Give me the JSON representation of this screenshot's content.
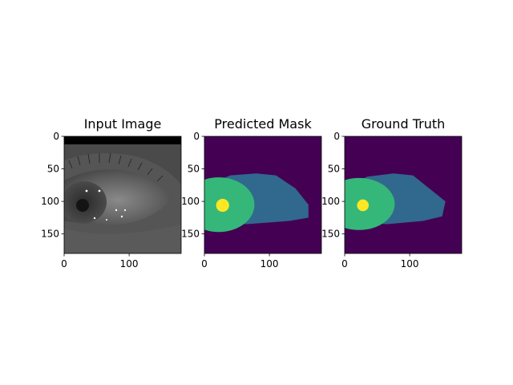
{
  "figure": {
    "background": "#ffffff"
  },
  "colors": {
    "background_class": "#440154",
    "iris_class": "#31688e",
    "pupil_region_class": "#35b779",
    "pupil_class": "#fde725",
    "eye_image_dark": "#1e1e1e",
    "eye_image_light": "#7a7a7a",
    "padding_band": "#000000"
  },
  "chart_data": [
    {
      "type": "image",
      "title": "Input Image",
      "content": "grayscale-eye-photo",
      "x_ticks": [
        0,
        100
      ],
      "y_ticks": [
        0,
        50,
        100,
        150
      ],
      "xlim": [
        0,
        180
      ],
      "ylim": [
        180,
        0
      ]
    },
    {
      "type": "heatmap",
      "title": "Predicted Mask",
      "content": "segmentation-mask",
      "classes": [
        "background",
        "iris",
        "pupil-region",
        "pupil"
      ],
      "x_ticks": [
        0,
        100
      ],
      "y_ticks": [
        0,
        50,
        100,
        150
      ],
      "xlim": [
        0,
        180
      ],
      "ylim": [
        180,
        0
      ],
      "regions": {
        "iris_polygon": [
          [
            0,
            77
          ],
          [
            40,
            60
          ],
          [
            80,
            57
          ],
          [
            110,
            60
          ],
          [
            140,
            80
          ],
          [
            160,
            105
          ],
          [
            160,
            125
          ],
          [
            130,
            130
          ],
          [
            65,
            135
          ],
          [
            0,
            130
          ]
        ],
        "pupil_region_center": [
          22,
          105
        ],
        "pupil_region_radius": [
          55,
          42
        ],
        "pupil_center": [
          28,
          106
        ],
        "pupil_radius": 10
      }
    },
    {
      "type": "heatmap",
      "title": "Ground Truth",
      "content": "segmentation-mask",
      "classes": [
        "background",
        "iris",
        "pupil-region",
        "pupil"
      ],
      "x_ticks": [
        0,
        100
      ],
      "y_ticks": [
        0,
        50,
        100,
        150
      ],
      "xlim": [
        0,
        180
      ],
      "ylim": [
        180,
        0
      ],
      "regions": {
        "iris_polygon": [
          [
            0,
            77
          ],
          [
            35,
            62
          ],
          [
            75,
            57
          ],
          [
            105,
            60
          ],
          [
            130,
            80
          ],
          [
            155,
            100
          ],
          [
            150,
            123
          ],
          [
            120,
            130
          ],
          [
            65,
            135
          ],
          [
            0,
            130
          ]
        ],
        "pupil_region_center": [
          22,
          104
        ],
        "pupil_region_radius": [
          55,
          40
        ],
        "pupil_center": [
          28,
          106
        ],
        "pupil_radius": 9
      }
    }
  ]
}
